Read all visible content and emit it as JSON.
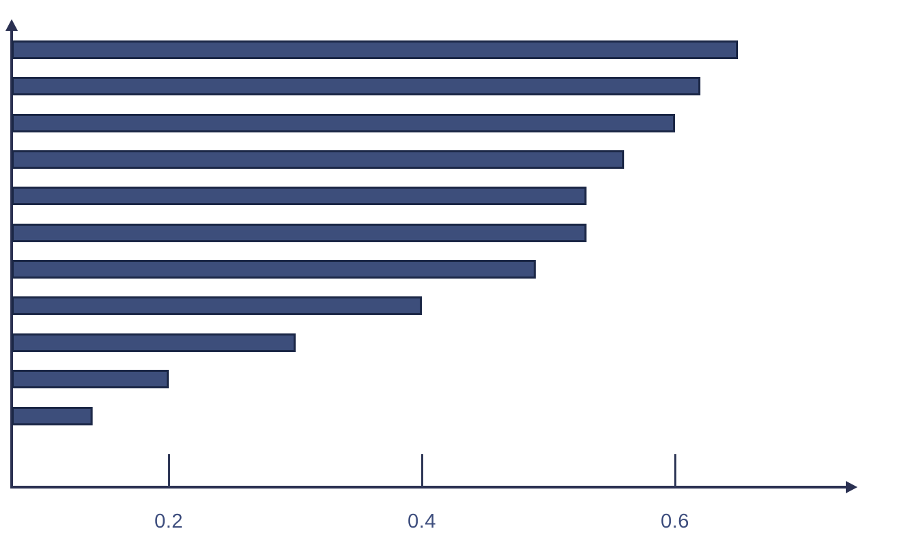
{
  "chart_data": {
    "type": "bar",
    "orientation": "horizontal",
    "title": "",
    "xlabel": "",
    "ylabel": "",
    "values": [
      0.65,
      0.62,
      0.6,
      0.56,
      0.53,
      0.53,
      0.49,
      0.4,
      0.3,
      0.2,
      0.14
    ],
    "bar_count": 11,
    "x_ticks": [
      {
        "value": 0.2,
        "label": "0.2"
      },
      {
        "value": 0.4,
        "label": "0.4"
      },
      {
        "value": 0.6,
        "label": "0.6"
      }
    ],
    "xlim": [
      0,
      0.74
    ],
    "grid": false,
    "legend": null,
    "category_labels_shown": false
  },
  "colors": {
    "background": "#FFFFFF",
    "bar_fill": "#3D4E7B",
    "bar_border": "#1B2746",
    "axis": "#2B3152",
    "tick": "#2F3757",
    "tick_label": "#3E4E7E"
  }
}
